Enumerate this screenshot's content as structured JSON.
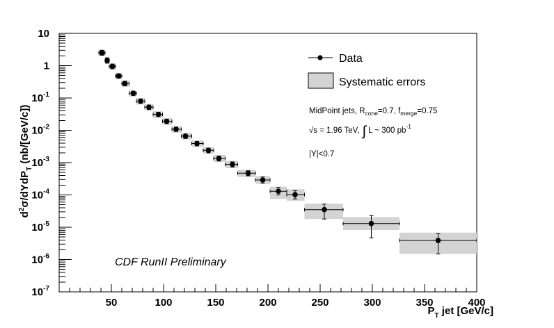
{
  "chart_data": {
    "type": "scatter",
    "ylog": true,
    "xlim": [
      0,
      400
    ],
    "ylim": [
      1e-07,
      10
    ],
    "xlabel": {
      "main": "P",
      "sub": "T",
      "rest": " jet [GeV/c]"
    },
    "ylabel": "d²σ/dYdP_T (nb/[GeV/c])",
    "x_ticks": [
      {
        "value": 50,
        "label": "50"
      },
      {
        "value": 100,
        "label": "100"
      },
      {
        "value": 150,
        "label": "150"
      },
      {
        "value": 200,
        "label": "200"
      },
      {
        "value": 250,
        "label": "250"
      },
      {
        "value": 300,
        "label": "300"
      },
      {
        "value": 350,
        "label": "350"
      },
      {
        "value": 400,
        "label": "400"
      }
    ],
    "y_ticks": [
      {
        "value": 10,
        "base": "10",
        "exp": ""
      },
      {
        "value": 1,
        "base": "1",
        "exp": ""
      },
      {
        "value": 0.1,
        "base": "10",
        "exp": "-1"
      },
      {
        "value": 0.01,
        "base": "10",
        "exp": "-2"
      },
      {
        "value": 0.001,
        "base": "10",
        "exp": "-3"
      },
      {
        "value": 0.0001,
        "base": "10",
        "exp": "-4"
      },
      {
        "value": 1e-05,
        "base": "10",
        "exp": "-5"
      },
      {
        "value": 1e-06,
        "base": "10",
        "exp": "-6"
      },
      {
        "value": 1e-07,
        "base": "10",
        "exp": "-7"
      }
    ],
    "legend": [
      {
        "label": "Data",
        "kind": "marker"
      },
      {
        "label": "Systematic errors",
        "kind": "box"
      }
    ],
    "legend_position": "top-right",
    "series": [
      {
        "points": [
          {
            "x": 41,
            "xlo": 38,
            "xhi": 44,
            "y": 2.5,
            "ylo": 2.1,
            "yhi": 3.0,
            "syslo": 2.0,
            "syshi": 3.1
          },
          {
            "x": 46,
            "xlo": 44,
            "xhi": 48,
            "y": 1.45,
            "ylo": 1.2,
            "yhi": 1.75,
            "syslo": 1.15,
            "syshi": 1.8
          },
          {
            "x": 51,
            "xlo": 48,
            "xhi": 54,
            "y": 0.95,
            "ylo": 0.8,
            "yhi": 1.12,
            "syslo": 0.76,
            "syshi": 1.18
          },
          {
            "x": 57,
            "xlo": 54,
            "xhi": 60,
            "y": 0.48,
            "ylo": 0.41,
            "yhi": 0.56,
            "syslo": 0.38,
            "syshi": 0.6
          },
          {
            "x": 63,
            "xlo": 60,
            "xhi": 67,
            "y": 0.28,
            "ylo": 0.24,
            "yhi": 0.33,
            "syslo": 0.22,
            "syshi": 0.35
          },
          {
            "x": 71,
            "xlo": 67,
            "xhi": 74,
            "y": 0.14,
            "ylo": 0.12,
            "yhi": 0.16,
            "syslo": 0.11,
            "syshi": 0.175
          },
          {
            "x": 78,
            "xlo": 74,
            "xhi": 82,
            "y": 0.08,
            "ylo": 0.068,
            "yhi": 0.093,
            "syslo": 0.063,
            "syshi": 0.1
          },
          {
            "x": 86,
            "xlo": 82,
            "xhi": 90,
            "y": 0.052,
            "ylo": 0.044,
            "yhi": 0.06,
            "syslo": 0.041,
            "syshi": 0.065
          },
          {
            "x": 95,
            "xlo": 90,
            "xhi": 99,
            "y": 0.031,
            "ylo": 0.027,
            "yhi": 0.036,
            "syslo": 0.024,
            "syshi": 0.039
          },
          {
            "x": 103,
            "xlo": 99,
            "xhi": 108,
            "y": 0.019,
            "ylo": 0.016,
            "yhi": 0.022,
            "syslo": 0.015,
            "syshi": 0.024
          },
          {
            "x": 112,
            "xlo": 108,
            "xhi": 117,
            "y": 0.0108,
            "ylo": 0.0092,
            "yhi": 0.0125,
            "syslo": 0.0085,
            "syshi": 0.0135
          },
          {
            "x": 121,
            "xlo": 117,
            "xhi": 127,
            "y": 0.0066,
            "ylo": 0.0056,
            "yhi": 0.0077,
            "syslo": 0.0052,
            "syshi": 0.0083
          },
          {
            "x": 132,
            "xlo": 127,
            "xhi": 138,
            "y": 0.0039,
            "ylo": 0.0033,
            "yhi": 0.0045,
            "syslo": 0.0031,
            "syshi": 0.0049
          },
          {
            "x": 143,
            "xlo": 138,
            "xhi": 148,
            "y": 0.0024,
            "ylo": 0.002,
            "yhi": 0.0028,
            "syslo": 0.0019,
            "syshi": 0.003
          },
          {
            "x": 153,
            "xlo": 148,
            "xhi": 159,
            "y": 0.00135,
            "ylo": 0.00112,
            "yhi": 0.0016,
            "syslo": 0.00105,
            "syshi": 0.00172
          },
          {
            "x": 166,
            "xlo": 159,
            "xhi": 171,
            "y": 0.00088,
            "ylo": 0.00073,
            "yhi": 0.00105,
            "syslo": 0.00068,
            "syshi": 0.00113
          },
          {
            "x": 181,
            "xlo": 171,
            "xhi": 188,
            "y": 0.00047,
            "ylo": 0.00039,
            "yhi": 0.00056,
            "syslo": 0.00036,
            "syshi": 0.0006
          },
          {
            "x": 195,
            "xlo": 188,
            "xhi": 202,
            "y": 0.00029,
            "ylo": 0.00023,
            "yhi": 0.00036,
            "syslo": 0.00022,
            "syshi": 0.00038
          },
          {
            "x": 210,
            "xlo": 202,
            "xhi": 218,
            "y": 0.00013,
            "ylo": 0.0001,
            "yhi": 0.00017,
            "syslo": 7.5e-05,
            "syshi": 0.00018
          },
          {
            "x": 226,
            "xlo": 218,
            "xhi": 235,
            "y": 0.000102,
            "ylo": 7.5e-05,
            "yhi": 0.000135,
            "syslo": 6.6e-05,
            "syshi": 0.00015
          },
          {
            "x": 254,
            "xlo": 235,
            "xhi": 272,
            "y": 3.5e-05,
            "ylo": 1.8e-05,
            "yhi": 5.2e-05,
            "syslo": 1.8e-05,
            "syshi": 5.4e-05
          },
          {
            "x": 299,
            "xlo": 272,
            "xhi": 326,
            "y": 1.3e-05,
            "ylo": 4.7e-06,
            "yhi": 2.3e-05,
            "syslo": 8.2e-06,
            "syshi": 2.05e-05
          },
          {
            "x": 363,
            "xlo": 326,
            "xhi": 400,
            "y": 3.9e-06,
            "ylo": 1.5e-06,
            "yhi": 6.5e-06,
            "syslo": 1.5e-06,
            "syshi": 6.8e-06
          }
        ]
      }
    ],
    "info": {
      "line1_prefix": "MidPoint jets, R",
      "line1_sub1": "cone",
      "line1_mid": "=0.7, f",
      "line1_sub2": "merge",
      "line1_suffix": "=0.75",
      "line2_prefix": "√s = 1.96 TeV,",
      "line2_integral": "∫",
      "line2_mid": " L ~ 300 pb",
      "line2_sup": "-1",
      "line3": "|Y|<0.7"
    },
    "annotation": "CDF RunII Preliminary"
  }
}
